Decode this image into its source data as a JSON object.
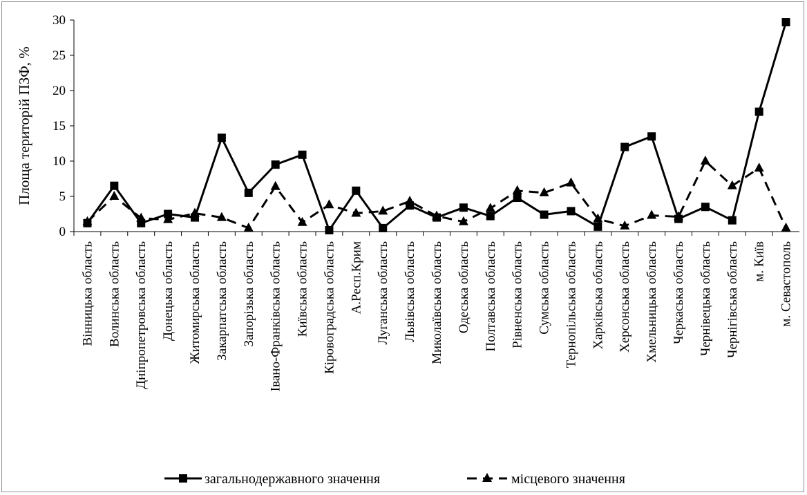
{
  "chart_data": {
    "type": "line",
    "ylabel": "Площа територій ПЗФ, %",
    "xlabel": "",
    "title": "",
    "ylim": [
      0,
      30
    ],
    "yticks": [
      0,
      5,
      10,
      15,
      20,
      25,
      30
    ],
    "grid": false,
    "legend_position": "bottom",
    "categories": [
      "Вінницька  область",
      "Волинська область",
      "Дніпропетровська область",
      "Донецька  область",
      "Житомирська область",
      "Закарпатська область",
      "Запорізька  область",
      "Івано-Франківська область",
      "Київська  область",
      "Кіровоградська область",
      "А.Респ.Крим",
      "Луганська область",
      "Львівська  область",
      "Миколаївська  область",
      "Одеська область",
      "Полтавська область",
      "Рівненська  область",
      "Сумська  область",
      "Тернопільська  область",
      "Харківська область",
      "Херсонська область",
      "Хмельницька область",
      "Черкаська  область",
      "Чернівецька  область",
      "Чернігівська  область",
      "м. Київ",
      "м. Севастополь"
    ],
    "series": [
      {
        "name": "загальнодержавного значення",
        "style": "solid",
        "marker": "square",
        "values": [
          1.2,
          6.5,
          1.2,
          2.5,
          2.0,
          13.3,
          5.5,
          9.5,
          10.9,
          0.2,
          5.8,
          0.5,
          3.7,
          2.0,
          3.4,
          2.2,
          4.8,
          2.4,
          2.9,
          0.7,
          12.0,
          13.5,
          1.8,
          3.5,
          1.6,
          17.0,
          29.7
        ]
      },
      {
        "name": "місцевого значення",
        "style": "dashed",
        "marker": "triangle",
        "values": [
          1.4,
          5.0,
          1.9,
          1.7,
          2.6,
          2.0,
          0.5,
          6.4,
          1.3,
          3.8,
          2.6,
          2.9,
          4.3,
          2.2,
          1.4,
          3.3,
          5.8,
          5.5,
          6.9,
          1.8,
          0.8,
          2.3,
          2.1,
          10.0,
          6.5,
          9.0,
          0.5
        ]
      }
    ]
  },
  "colors": {
    "line": "#000000",
    "background": "#ffffff",
    "frame": "#8c8c8c"
  }
}
